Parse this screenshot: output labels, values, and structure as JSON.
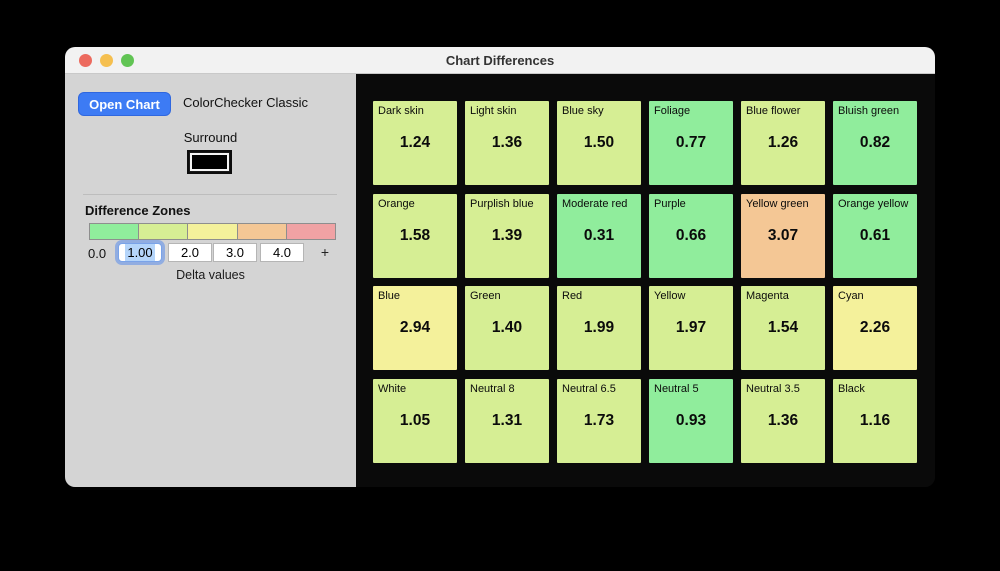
{
  "window": {
    "title": "Chart Differences"
  },
  "sidebar": {
    "open_chart_button": "Open Chart",
    "chart_name": "ColorChecker Classic",
    "surround_label": "Surround",
    "surround_color": "#000000",
    "zones_section_title": "Difference Zones",
    "delta_min": "0.0",
    "delta_inputs": [
      {
        "value": "1.00",
        "focused": true
      },
      {
        "value": "2.0",
        "focused": false
      },
      {
        "value": "3.0",
        "focused": false
      },
      {
        "value": "4.0",
        "focused": false
      }
    ],
    "add_zone_button": "+",
    "delta_caption": "Delta values"
  },
  "chart_data": {
    "type": "heatmap",
    "title": "Chart Differences",
    "rows": 4,
    "cols": 6,
    "zone_thresholds": [
      1.0,
      2.0,
      3.0,
      4.0
    ],
    "zone_colors": [
      "#90ED9C",
      "#D6EE94",
      "#F4F19B",
      "#F4C795",
      "#F0A2A4"
    ],
    "patches": [
      {
        "name": "Dark skin",
        "value": "1.24",
        "zone": 1
      },
      {
        "name": "Light skin",
        "value": "1.36",
        "zone": 1
      },
      {
        "name": "Blue sky",
        "value": "1.50",
        "zone": 1
      },
      {
        "name": "Foliage",
        "value": "0.77",
        "zone": 0
      },
      {
        "name": "Blue flower",
        "value": "1.26",
        "zone": 1
      },
      {
        "name": "Bluish green",
        "value": "0.82",
        "zone": 0
      },
      {
        "name": "Orange",
        "value": "1.58",
        "zone": 1
      },
      {
        "name": "Purplish blue",
        "value": "1.39",
        "zone": 1
      },
      {
        "name": "Moderate red",
        "value": "0.31",
        "zone": 0
      },
      {
        "name": "Purple",
        "value": "0.66",
        "zone": 0
      },
      {
        "name": "Yellow green",
        "value": "3.07",
        "zone": 3
      },
      {
        "name": "Orange yellow",
        "value": "0.61",
        "zone": 0
      },
      {
        "name": "Blue",
        "value": "2.94",
        "zone": 2
      },
      {
        "name": "Green",
        "value": "1.40",
        "zone": 1
      },
      {
        "name": "Red",
        "value": "1.99",
        "zone": 1
      },
      {
        "name": "Yellow",
        "value": "1.97",
        "zone": 1
      },
      {
        "name": "Magenta",
        "value": "1.54",
        "zone": 1
      },
      {
        "name": "Cyan",
        "value": "2.26",
        "zone": 2
      },
      {
        "name": "White",
        "value": "1.05",
        "zone": 1
      },
      {
        "name": "Neutral 8",
        "value": "1.31",
        "zone": 1
      },
      {
        "name": "Neutral 6.5",
        "value": "1.73",
        "zone": 1
      },
      {
        "name": "Neutral 5",
        "value": "0.93",
        "zone": 0
      },
      {
        "name": "Neutral 3.5",
        "value": "1.36",
        "zone": 1
      },
      {
        "name": "Black",
        "value": "1.16",
        "zone": 1
      }
    ]
  }
}
